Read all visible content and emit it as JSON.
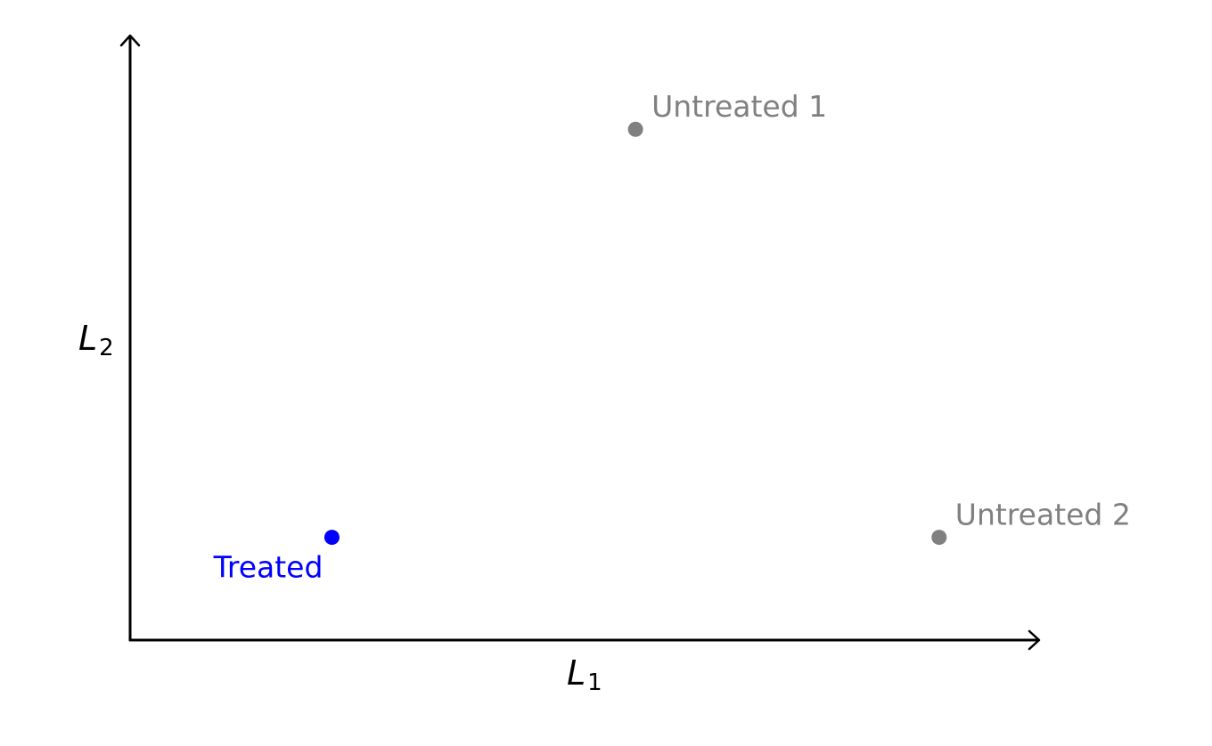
{
  "chart_data": {
    "type": "scatter",
    "x_axis": {
      "label_main": "L",
      "label_sub": "1"
    },
    "y_axis": {
      "label_main": "L",
      "label_sub": "2"
    },
    "colors": {
      "axis": "#000000",
      "treated": "#0000ff",
      "untreated": "#808080"
    },
    "points": [
      {
        "label": "Untreated 1",
        "group": "untreated",
        "x": 0.556,
        "y": 0.845
      },
      {
        "label": "Untreated 2",
        "group": "untreated",
        "x": 0.89,
        "y": 0.17
      },
      {
        "label": "Treated",
        "group": "treated",
        "x": 0.222,
        "y": 0.17
      }
    ]
  }
}
